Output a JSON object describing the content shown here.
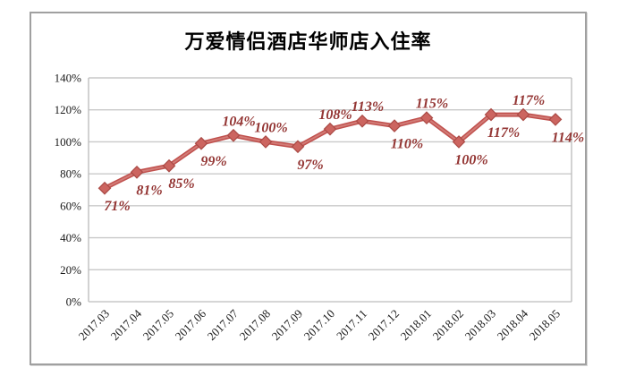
{
  "title": "万爱情侣酒店华师店入住率",
  "chart_data": {
    "type": "line",
    "title": "万爱情侣酒店华师店入住率",
    "categories": [
      "2017.03",
      "2017.04",
      "2017.05",
      "2017.06",
      "2017.07",
      "2017.08",
      "2017.09",
      "2017.10",
      "2017.11",
      "2017.12",
      "2018.01",
      "2018.02",
      "2018.03",
      "2018.04",
      "2018.05"
    ],
    "values": [
      71,
      81,
      85,
      99,
      104,
      100,
      97,
      108,
      113,
      110,
      115,
      100,
      117,
      117,
      114
    ],
    "data_labels": [
      "71%",
      "81%",
      "85%",
      "99%",
      "104%",
      "100%",
      "97%",
      "108%",
      "113%",
      "110%",
      "115%",
      "100%",
      "117%",
      "117%",
      "114%"
    ],
    "label_positions": [
      "below",
      "below",
      "below",
      "below",
      "above",
      "above",
      "below",
      "above",
      "above",
      "below",
      "above",
      "below",
      "below",
      "above",
      "below"
    ],
    "xlabel": "",
    "ylabel": "",
    "y_ticks": [
      "0%",
      "20%",
      "40%",
      "60%",
      "80%",
      "100%",
      "120%",
      "140%"
    ],
    "ylim": [
      0,
      140
    ],
    "y_tick_step": 20,
    "grid": true,
    "legend": "none",
    "colors": {
      "line": "#c0504d",
      "line_highlight": "#d88b85",
      "marker_fill": "#cc6560",
      "marker_stroke": "#aa4a45",
      "data_label": "#943634",
      "gridline": "#c9c9c9",
      "plot_border": "#bfbfbf",
      "axis_text": "#1a1a1a",
      "frame_border": "#a0a0a0"
    }
  }
}
